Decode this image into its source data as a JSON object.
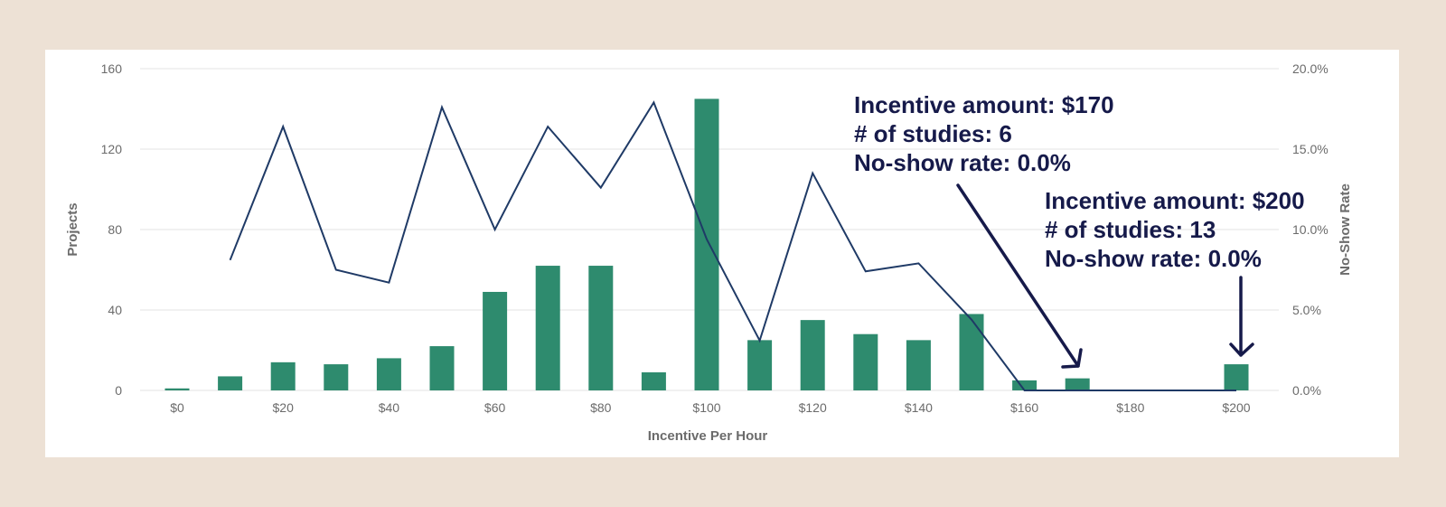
{
  "chart_data": {
    "type": "bar",
    "x": [
      0,
      10,
      20,
      30,
      40,
      50,
      60,
      70,
      80,
      90,
      100,
      110,
      120,
      130,
      140,
      150,
      160,
      170,
      180,
      190,
      200
    ],
    "x_tick_values": [
      0,
      20,
      40,
      60,
      80,
      100,
      120,
      140,
      160,
      180,
      200
    ],
    "x_tick_labels": [
      "$0",
      "$20",
      "$40",
      "$60",
      "$80",
      "$100",
      "$120",
      "$140",
      "$160",
      "$180",
      "$200"
    ],
    "xlabel": "Incentive Per Hour",
    "ylabel": "Projects",
    "y2label": "No-Show Rate",
    "ylim": [
      0,
      160
    ],
    "y2lim": [
      0,
      20
    ],
    "y_tick_values": [
      0,
      40,
      80,
      120,
      160
    ],
    "y_tick_labels": [
      "0",
      "40",
      "80",
      "120",
      "160"
    ],
    "y2_tick_values": [
      0,
      5,
      10,
      15,
      20
    ],
    "y2_tick_labels": [
      "0.0%",
      "5.0%",
      "10.0%",
      "15.0%",
      "20.0%"
    ],
    "grid": true,
    "colors": {
      "bars": "#2e8b6e",
      "line": "#1f3a66",
      "annotation": "#161a4a",
      "grid": "#e3e3e3"
    },
    "series": [
      {
        "type": "bar",
        "axis": "left",
        "values": [
          1,
          7,
          14,
          13,
          16,
          22,
          49,
          62,
          62,
          9,
          145,
          25,
          35,
          28,
          25,
          38,
          5,
          6,
          0,
          0,
          13
        ]
      },
      {
        "type": "line",
        "axis": "right",
        "values": [
          null,
          8.1,
          16.4,
          7.5,
          6.7,
          17.6,
          10.0,
          16.4,
          12.6,
          17.9,
          9.4,
          3.1,
          13.5,
          7.4,
          7.9,
          4.4,
          0.0,
          0.0,
          0.0,
          0.0,
          0.0
        ]
      }
    ],
    "annotations": [
      {
        "target_x": 170,
        "lines": [
          "Incentive amount: $170",
          "# of studies: 6",
          "No-show rate: 0.0%"
        ]
      },
      {
        "target_x": 200,
        "lines": [
          "Incentive amount: $200",
          "# of studies: 13",
          "No-show rate: 0.0%"
        ]
      }
    ]
  }
}
